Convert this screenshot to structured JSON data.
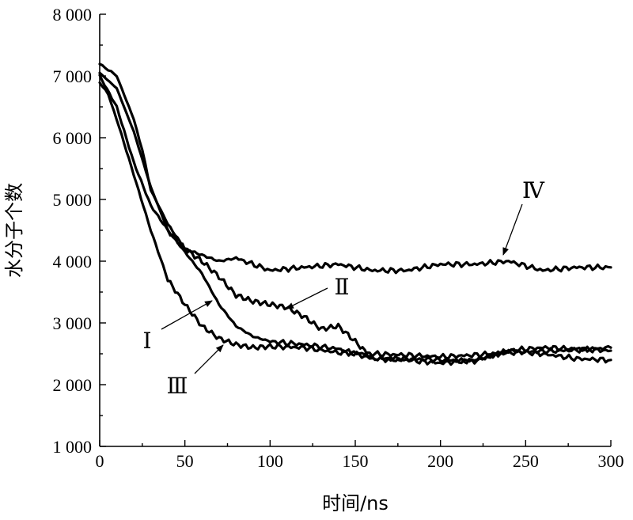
{
  "chart_data": {
    "type": "line",
    "xlabel": "时间/ns",
    "ylabel": "水分子个数",
    "xlim": [
      0,
      300
    ],
    "ylim": [
      1000,
      8000
    ],
    "x_ticks": [
      0,
      50,
      100,
      150,
      200,
      250,
      300
    ],
    "x_tick_labels": [
      "0",
      "50",
      "100",
      "150",
      "200",
      "250",
      "300"
    ],
    "y_ticks": [
      1000,
      2000,
      3000,
      4000,
      5000,
      6000,
      7000,
      8000
    ],
    "y_tick_labels": [
      "1 000",
      "2 000",
      "3 000",
      "4 000",
      "5 000",
      "6 000",
      "7 000",
      "8 000"
    ],
    "grid": false,
    "series": [
      {
        "name": "Ⅰ",
        "x": [
          0,
          10,
          20,
          30,
          40,
          50,
          60,
          70,
          80,
          90,
          100,
          120,
          140,
          160,
          180,
          200,
          220,
          240,
          260,
          280,
          300
        ],
        "values": [
          7050,
          6800,
          6100,
          5200,
          4500,
          4150,
          3800,
          3300,
          2950,
          2780,
          2700,
          2650,
          2580,
          2420,
          2400,
          2350,
          2400,
          2550,
          2600,
          2580,
          2550
        ]
      },
      {
        "name": "Ⅱ",
        "x": [
          0,
          10,
          20,
          30,
          40,
          50,
          60,
          70,
          80,
          90,
          100,
          110,
          120,
          130,
          140,
          150,
          160,
          180,
          200,
          220,
          240,
          260,
          280,
          300
        ],
        "values": [
          7000,
          6500,
          5600,
          4900,
          4500,
          4200,
          4000,
          3750,
          3450,
          3350,
          3300,
          3250,
          3100,
          2900,
          2950,
          2700,
          2420,
          2420,
          2400,
          2380,
          2550,
          2500,
          2420,
          2400
        ]
      },
      {
        "name": "Ⅲ",
        "x": [
          0,
          5,
          10,
          20,
          30,
          40,
          50,
          60,
          70,
          80,
          90,
          100,
          120,
          140,
          160,
          180,
          200,
          220,
          240,
          260,
          280,
          300
        ],
        "values": [
          6900,
          6700,
          6300,
          5400,
          4500,
          3700,
          3300,
          2950,
          2750,
          2650,
          2600,
          2620,
          2600,
          2520,
          2500,
          2480,
          2450,
          2480,
          2520,
          2540,
          2560,
          2600
        ]
      },
      {
        "name": "Ⅳ",
        "x": [
          0,
          5,
          10,
          20,
          25,
          30,
          40,
          50,
          60,
          70,
          80,
          100,
          120,
          140,
          160,
          180,
          200,
          220,
          240,
          260,
          280,
          300
        ],
        "values": [
          7200,
          7100,
          7000,
          6300,
          5800,
          5150,
          4600,
          4200,
          4100,
          4000,
          4050,
          3850,
          3900,
          3950,
          3850,
          3850,
          3950,
          3950,
          4000,
          3850,
          3900,
          3900
        ]
      }
    ]
  }
}
